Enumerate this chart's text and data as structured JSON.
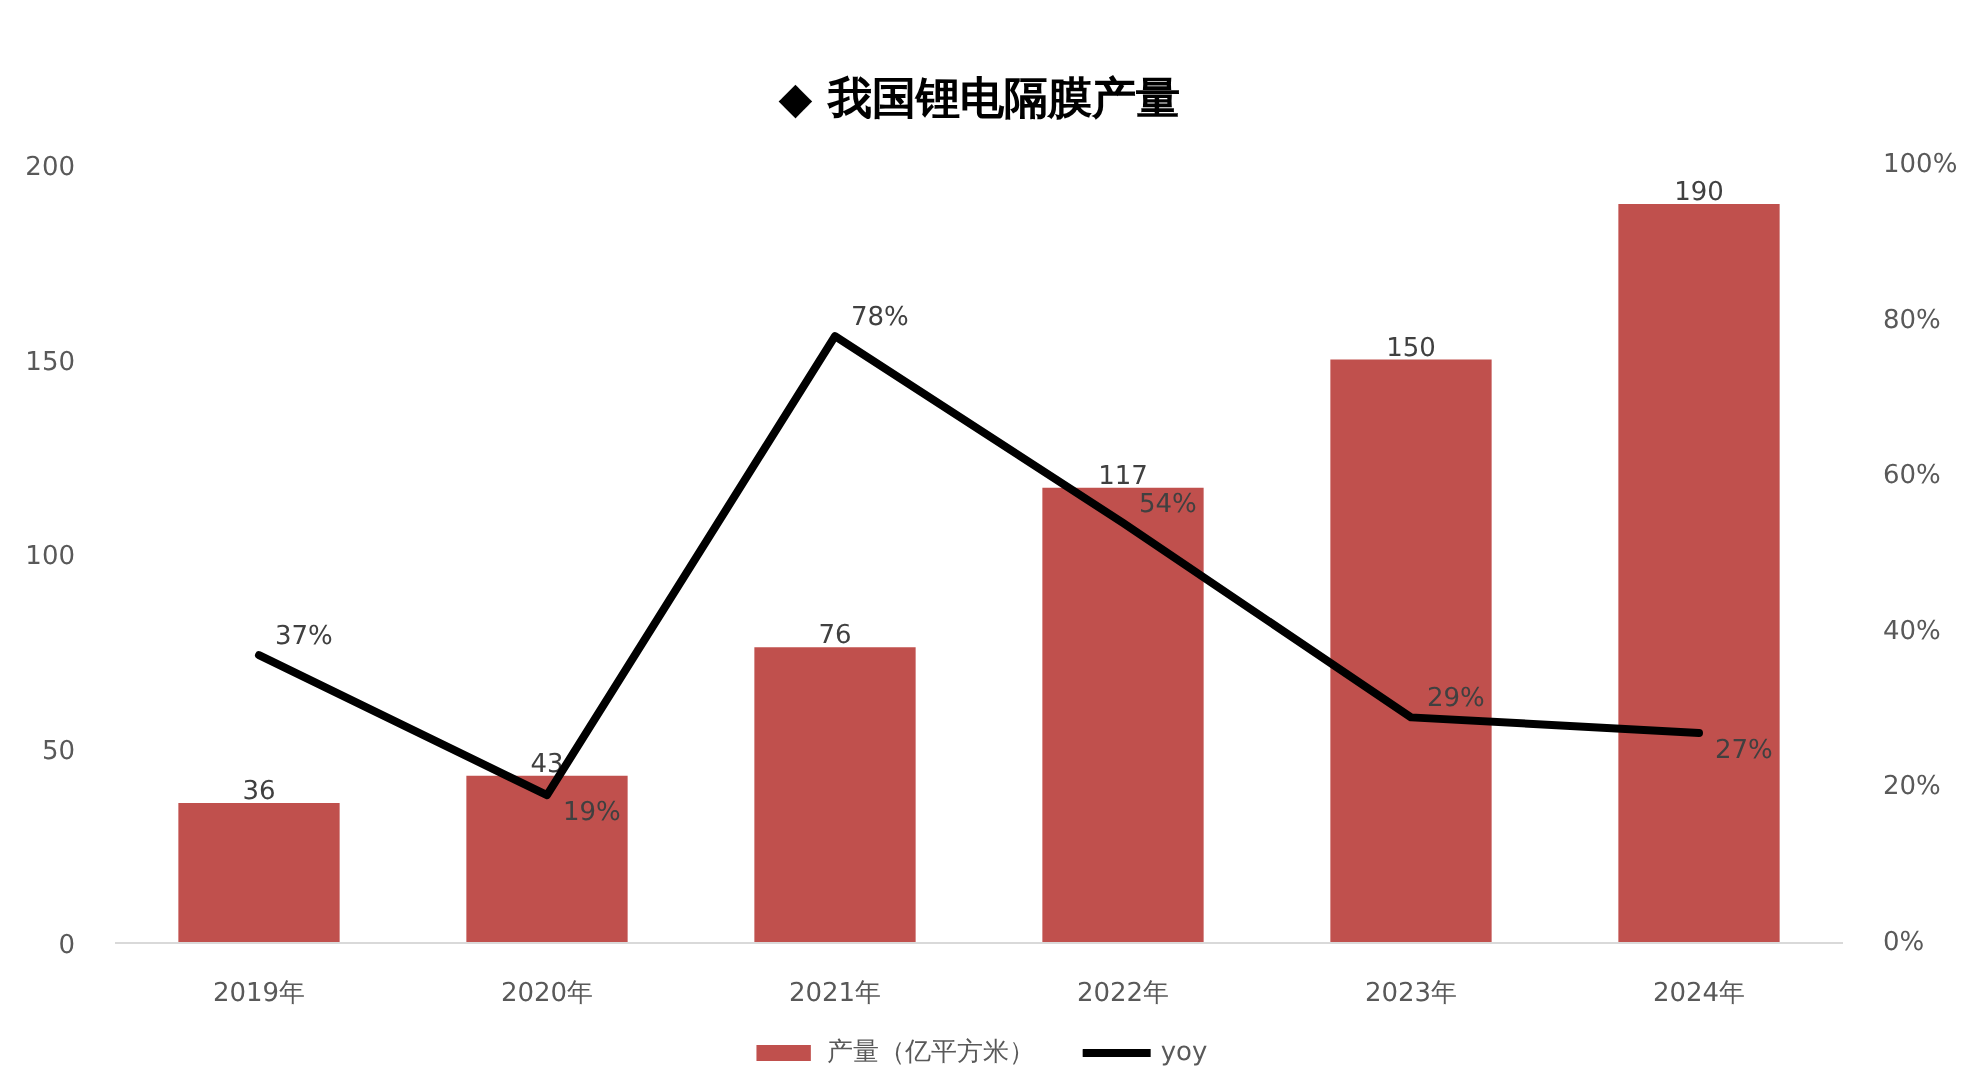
{
  "chart_data": {
    "type": "bar",
    "title": "◆ 我国锂电隔膜产量",
    "categories": [
      "2019年",
      "2020年",
      "2021年",
      "2022年",
      "2023年",
      "2024年"
    ],
    "series": [
      {
        "name": "产量（亿平方米）",
        "color": "#c0504d",
        "values": [
          36,
          43,
          76,
          117,
          150,
          190
        ],
        "value_labels": [
          "36",
          "43",
          "76",
          "117",
          "150",
          "190"
        ]
      },
      {
        "name": "yoy",
        "type": "line",
        "axis": "y2",
        "color": "#000000",
        "values": [
          37,
          19,
          78,
          54,
          29,
          27
        ],
        "value_labels": [
          "37%",
          "19%",
          "78%",
          "54%",
          "29%",
          "27%"
        ]
      }
    ],
    "ylim": [
      0,
      200
    ],
    "yticks": [
      0,
      50,
      100,
      150,
      200
    ],
    "y2lim": [
      0,
      100
    ],
    "y2ticks": [
      {
        "value": 0,
        "label": "0%"
      },
      {
        "value": 20,
        "label": "20%"
      },
      {
        "value": 40,
        "label": "40%"
      },
      {
        "value": 60,
        "label": "60%"
      },
      {
        "value": 80,
        "label": "80%"
      },
      {
        "value": 100,
        "label": "100%"
      }
    ],
    "legend": "bottom"
  }
}
